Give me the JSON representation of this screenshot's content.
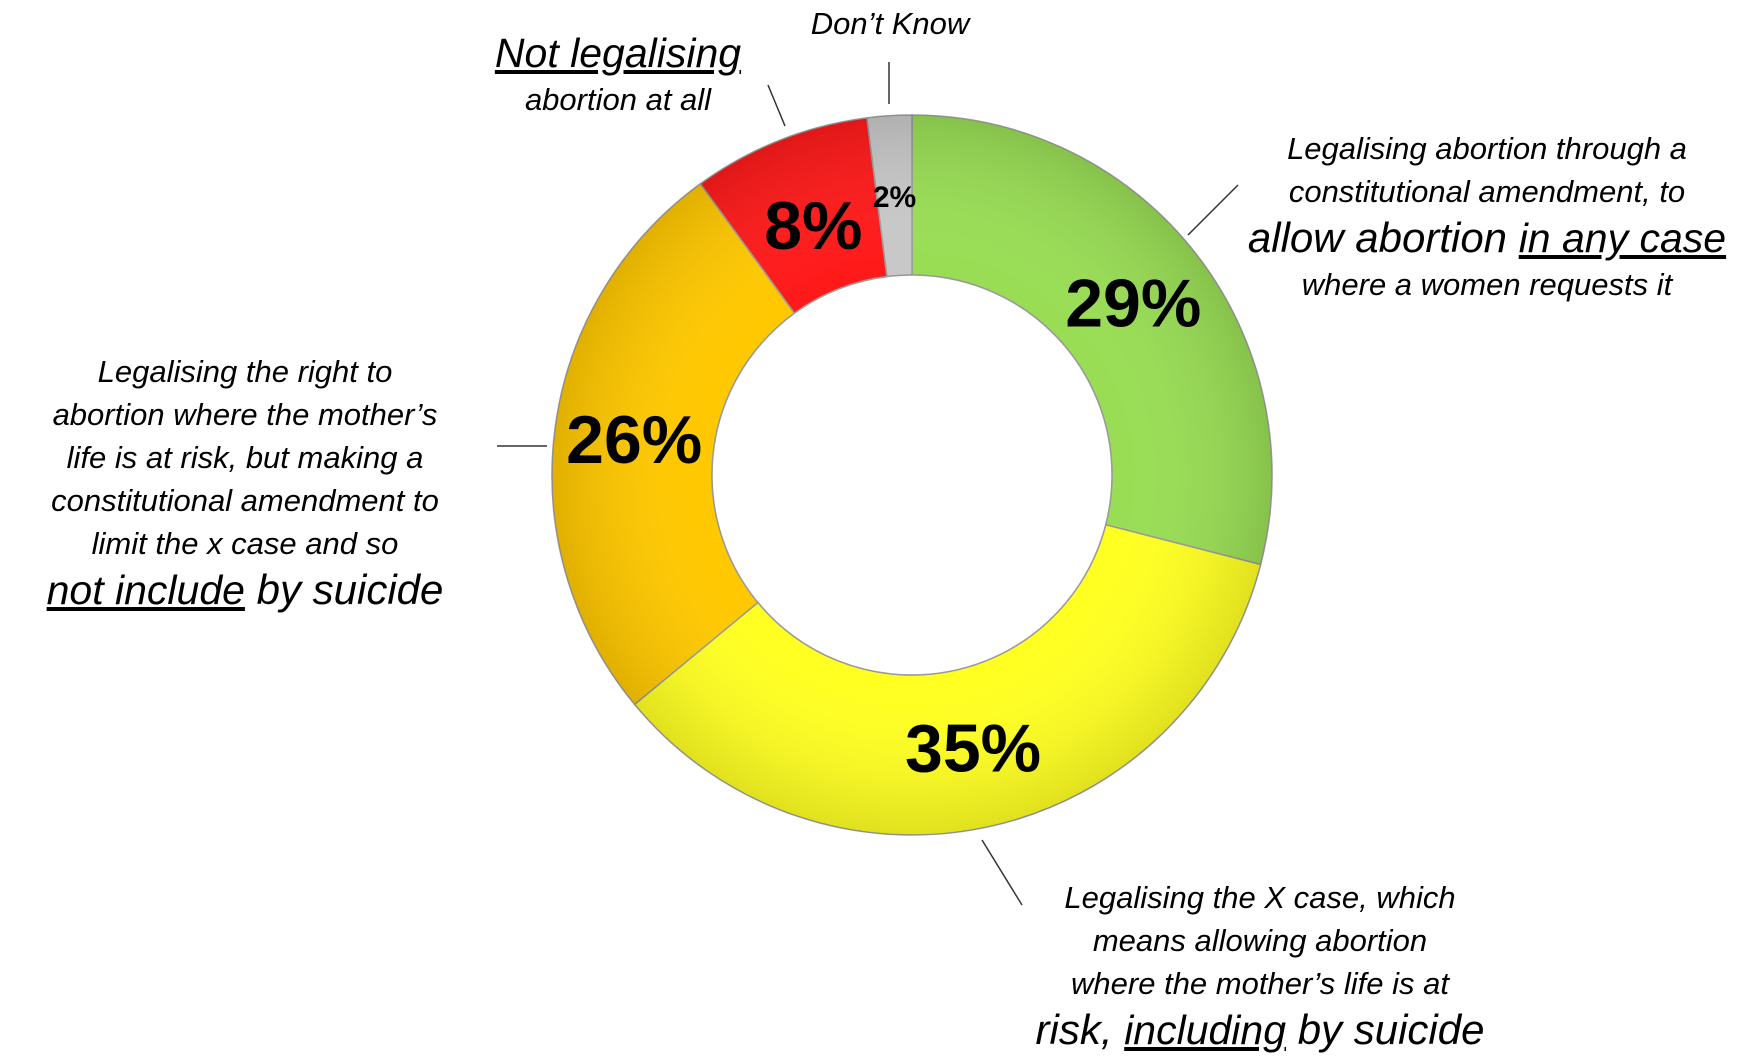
{
  "chart_data": {
    "type": "pie",
    "donut": true,
    "categories": [
      "Legalising abortion through a constitutional amendment, to allow abortion in any case where a women requests it",
      "Legalising the X case, which means allowing abortion where the mother’s life is at risk, including by suicide",
      "Legalising the right to abortion where the mother’s life is at risk, but making a constitutional amendment to limit the x case and so not include by suicide",
      "Not legalising abortion at all",
      "Don’t Know"
    ],
    "values": [
      29,
      35,
      26,
      8,
      2
    ],
    "value_labels": [
      "29%",
      "35%",
      "26%",
      "8%",
      "2%"
    ],
    "colors": [
      "#99dd55",
      "#ffff22",
      "#ffc800",
      "#ff1a1a",
      "#c8c8c8"
    ]
  },
  "labels": {
    "any_case": {
      "line1": "Legalising abortion through a",
      "line2": "constitutional amendment, to",
      "line3_pre": "allow abortion ",
      "line3_u": "in any case",
      "line4": "where a women requests it"
    },
    "x_case": {
      "line1": "Legalising the X case, which",
      "line2": "means allowing abortion",
      "line3": "where the mother’s life is at",
      "line4_pre": "risk, ",
      "line4_u": "including",
      "line4_post": " by suicide"
    },
    "limit": {
      "line1": "Legalising the right to",
      "line2": "abortion where the mother’s",
      "line3": "life is at risk, but making a",
      "line4": "constitutional amendment to",
      "line5": "limit the x case and so",
      "line6_u": "not include",
      "line6_post": " by suicide"
    },
    "not_legal": {
      "line1_u": "Not legalising",
      "line2": "abortion at all"
    },
    "dont_know": "Don’t Know"
  }
}
